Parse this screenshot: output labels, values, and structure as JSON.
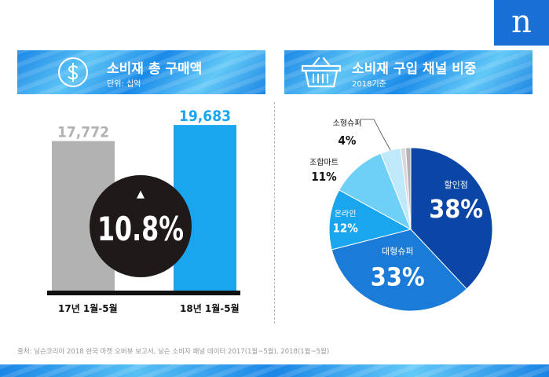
{
  "logo": "n",
  "left_panel": {
    "title": "소비재 총 구매액",
    "subtitle": "단위: 십억",
    "icon": "dollar-circle-icon"
  },
  "right_panel": {
    "title": "소비재 구입 채널 비중",
    "subtitle": "2018기준",
    "icon": "shopping-basket-icon"
  },
  "source": "출처: 닐슨코리아 2018 한국 마켓 오버뷰 보고서, 닐슨 소비자 패널 데이터 2017(1월~5월), 2018(1월~5월)",
  "chart_data": [
    {
      "type": "bar",
      "title": "소비재 총 구매액",
      "ylabel": "단위: 십억",
      "categories": [
        "17년 1월-5월",
        "18년 1월-5월"
      ],
      "values": [
        17772,
        19683
      ],
      "value_labels": [
        "17,772",
        "19,683"
      ],
      "colors": [
        "#b2b2b2",
        "#1aa6ef"
      ],
      "growth_label": "10.8%",
      "growth_arrow": "▲"
    },
    {
      "type": "pie",
      "title": "소비재 구입 채널 비중",
      "subtitle": "2018기준",
      "slices": [
        {
          "label": "할인점",
          "value": 38,
          "display": "38%",
          "color": "#0b46a6"
        },
        {
          "label": "대형슈퍼",
          "value": 33,
          "display": "33%",
          "color": "#1b7bd9"
        },
        {
          "label": "온라인",
          "value": 12,
          "display": "12%",
          "color": "#1aa6ef"
        },
        {
          "label": "조합마트",
          "value": 11,
          "display": "11%",
          "color": "#6fd0f7"
        },
        {
          "label": "소형슈퍼",
          "value": 4,
          "display": "4%",
          "color": "#bfe9fb"
        },
        {
          "label": "",
          "value": 1,
          "display": "",
          "color": "#d9d9d9"
        },
        {
          "label": "",
          "value": 1,
          "display": "",
          "color": "#b3b3b3"
        }
      ]
    }
  ]
}
